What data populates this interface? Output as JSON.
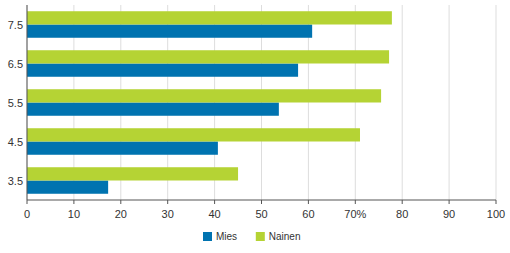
{
  "chart_data": {
    "type": "bar",
    "orientation": "horizontal",
    "categories": [
      "7.5",
      "6.5",
      "5.5",
      "4.5",
      "3.5"
    ],
    "series": [
      {
        "name": "Mies",
        "color": "#0073b0",
        "values": [
          60.8,
          57.8,
          53.7,
          40.7,
          17.3
        ]
      },
      {
        "name": "Nainen",
        "color": "#b5d334",
        "values": [
          77.8,
          77.2,
          75.5,
          71.0,
          45.0
        ]
      }
    ],
    "xlim": [
      0,
      100
    ],
    "xticks": [
      0,
      10,
      20,
      30,
      40,
      50,
      60,
      {
        "value": 70,
        "label": "70%"
      },
      80,
      90,
      100
    ],
    "grid": true,
    "legend": "bottom"
  }
}
